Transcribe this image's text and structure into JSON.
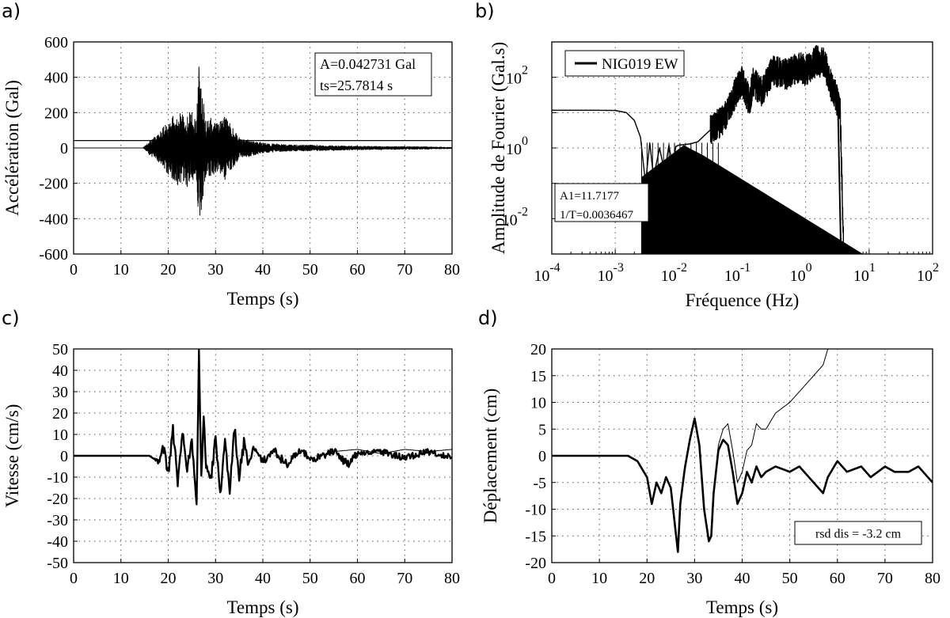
{
  "chart_data": [
    {
      "panel_label": "a)",
      "type": "line",
      "xlabel": "Temps (s)",
      "ylabel": "Accélération (Gal)",
      "xlim": [
        0,
        80
      ],
      "ylim": [
        -600,
        600
      ],
      "xticks": [
        0,
        10,
        20,
        30,
        40,
        50,
        60,
        70,
        80
      ],
      "yticks": [
        -600,
        -400,
        -200,
        0,
        200,
        400,
        600
      ],
      "xtick_labels": [
        "0",
        "10",
        "20",
        "30",
        "40",
        "50",
        "60",
        "70",
        "80"
      ],
      "ytick_labels": [
        "-600",
        "-400",
        "-200",
        "0",
        "200",
        "400",
        "600"
      ],
      "grid": true,
      "annotation": [
        "A=0.042731 Gal",
        "ts=25.7814 s"
      ],
      "annotation_placement": "top-right",
      "series": [
        {
          "x": [
            0,
            14,
            15,
            16,
            17,
            18,
            19,
            20,
            21,
            22,
            23,
            24,
            25,
            26,
            26.5,
            27,
            27.5,
            28,
            29,
            30,
            31,
            32,
            33,
            34,
            35,
            37,
            40,
            45,
            50,
            55,
            60,
            65,
            70,
            75,
            80
          ],
          "y": [
            0,
            0,
            10,
            -40,
            60,
            -80,
            120,
            -150,
            180,
            -210,
            190,
            -220,
            200,
            -180,
            460,
            -350,
            250,
            -150,
            170,
            -140,
            150,
            -180,
            140,
            -100,
            60,
            -50,
            30,
            -20,
            18,
            -15,
            12,
            -10,
            10,
            -8,
            5
          ]
        },
        {
          "x": [
            0,
            80
          ],
          "y": [
            42,
            42
          ]
        }
      ]
    },
    {
      "panel_label": "b)",
      "type": "line",
      "xlabel": "Fréquence (Hz)",
      "ylabel": "Amplitude de Fourier (Gal.s)",
      "xscale": "log",
      "yscale": "log",
      "xlim": [
        0.0001,
        100
      ],
      "ylim": [
        0.001,
        1000
      ],
      "xtick_labels": [
        {
          "base": "10",
          "exp": "-4"
        },
        {
          "base": "10",
          "exp": "-3"
        },
        {
          "base": "10",
          "exp": "-2"
        },
        {
          "base": "10",
          "exp": "-1"
        },
        {
          "base": "10",
          "exp": "0"
        },
        {
          "base": "10",
          "exp": "1"
        },
        {
          "base": "10",
          "exp": "2"
        }
      ],
      "ytick_labels": [
        {
          "base": "10",
          "exp": "-2"
        },
        {
          "base": "10",
          "exp": "0"
        },
        {
          "base": "10",
          "exp": "2"
        }
      ],
      "grid": true,
      "legend": [
        "NIG019 EW"
      ],
      "legend_placement": "top-left",
      "annotation": [
        "A1=11.7177",
        "1/T=0.0036467"
      ],
      "annotation_placement": "bottom-left",
      "series": [
        {
          "name": "NIG019 EW",
          "x": [
            0.0001,
            0.0005,
            0.001,
            0.0015,
            0.002,
            0.0025,
            0.003,
            0.0035,
            0.004,
            0.005,
            0.006,
            0.007,
            0.008,
            0.009,
            0.01,
            0.015,
            0.02,
            0.03,
            0.05,
            0.08,
            0.1,
            0.13,
            0.15,
            0.2,
            0.3,
            0.5,
            0.8,
            1,
            1.5,
            2,
            2.5,
            3,
            3.5,
            4,
            4.5
          ],
          "y": [
            11.7,
            11.7,
            11.5,
            10,
            6,
            2,
            0.1,
            1.4,
            0.15,
            1,
            0.2,
            1.2,
            0.3,
            1.1,
            1.2,
            1.3,
            1.5,
            3,
            6,
            40,
            80,
            20,
            70,
            40,
            150,
            120,
            200,
            150,
            300,
            250,
            60,
            30,
            10,
            0.001,
            0.001
          ]
        }
      ]
    },
    {
      "panel_label": "c)",
      "type": "line",
      "xlabel": "Temps (s)",
      "ylabel": "Vitesse (cm/s)",
      "xlim": [
        0,
        80
      ],
      "ylim": [
        -50,
        50
      ],
      "xticks": [
        0,
        10,
        20,
        30,
        40,
        50,
        60,
        70,
        80
      ],
      "yticks": [
        -50,
        -40,
        -30,
        -20,
        -10,
        0,
        10,
        20,
        30,
        40,
        50
      ],
      "xtick_labels": [
        "0",
        "10",
        "20",
        "30",
        "40",
        "50",
        "60",
        "70",
        "80"
      ],
      "ytick_labels": [
        "-50",
        "-40",
        "-30",
        "-20",
        "-10",
        "0",
        "10",
        "20",
        "30",
        "40",
        "50"
      ],
      "grid": true,
      "series": [
        {
          "x": [
            0,
            15,
            16,
            18,
            19,
            20,
            21,
            22,
            23,
            24,
            25,
            26,
            26.5,
            27,
            27.5,
            28,
            29,
            30,
            31,
            32,
            33,
            34,
            35,
            36,
            37,
            38,
            40,
            42,
            45,
            48,
            50,
            55,
            58,
            60,
            65,
            70,
            75,
            80
          ],
          "y": [
            0,
            0,
            0,
            -3,
            4,
            -8,
            12,
            -12,
            10,
            -6,
            8,
            -24,
            47,
            -10,
            17,
            -5,
            -12,
            8,
            -18,
            5,
            -15,
            14,
            -10,
            6,
            -5,
            4,
            -3,
            3,
            -4,
            3,
            -2,
            2,
            -4,
            1,
            2,
            -1,
            2,
            -1
          ]
        },
        {
          "x": [
            55,
            60,
            65,
            70,
            75,
            80
          ],
          "y": [
            2,
            3,
            1,
            3,
            2,
            3
          ]
        }
      ]
    },
    {
      "panel_label": "d)",
      "type": "line",
      "xlabel": "Temps (s)",
      "ylabel": "Déplacement (cm)",
      "xlim": [
        0,
        80
      ],
      "ylim": [
        -20,
        20
      ],
      "xticks": [
        0,
        10,
        20,
        30,
        40,
        50,
        60,
        70,
        80
      ],
      "yticks": [
        -20,
        -15,
        -10,
        -5,
        0,
        5,
        10,
        15,
        20
      ],
      "xtick_labels": [
        "0",
        "10",
        "20",
        "30",
        "40",
        "50",
        "60",
        "70",
        "80"
      ],
      "ytick_labels": [
        "-20",
        "-15",
        "-10",
        "-5",
        "0",
        "5",
        "10",
        "15",
        "20"
      ],
      "grid": true,
      "annotation": [
        "rsd dis = -3.2 cm"
      ],
      "annotation_placement": "bottom-right",
      "series": [
        {
          "x": [
            0,
            16,
            18,
            20,
            21,
            22,
            23,
            24,
            25,
            26,
            26.5,
            27,
            28,
            29,
            30,
            31,
            32,
            33,
            33.5,
            34,
            35,
            36,
            37,
            38,
            39,
            40,
            41,
            42,
            43,
            44,
            45,
            47,
            50,
            52,
            55,
            57,
            58,
            60,
            62,
            65,
            67,
            70,
            72,
            75,
            77,
            80
          ],
          "y": [
            0,
            0,
            -1,
            -4,
            -9,
            -5,
            -7,
            -4,
            -6,
            -14,
            -18,
            -9,
            -2,
            3,
            7,
            2,
            -10,
            -16,
            -15,
            -7,
            1,
            3,
            2,
            -3,
            -9,
            -7,
            -3,
            -5,
            -2,
            -4,
            -3,
            -2,
            -3,
            -2,
            -5,
            -7,
            -4,
            -1,
            -3,
            -2,
            -4,
            -2,
            -3,
            -3,
            -2,
            -5
          ]
        },
        {
          "x": [
            0,
            16,
            18,
            20,
            21,
            22,
            23,
            24,
            25,
            26,
            26.5,
            27,
            28,
            29,
            30,
            31,
            32,
            33,
            33.5,
            34,
            35,
            36,
            37,
            38,
            39,
            40,
            41,
            42,
            43,
            44,
            45,
            47,
            50,
            52,
            55,
            57,
            58
          ],
          "y": [
            0,
            0,
            -1,
            -4,
            -9,
            -5,
            -7,
            -4,
            -6,
            -14,
            -18,
            -9,
            -2,
            3,
            7,
            2,
            -10,
            -16,
            -15,
            -7,
            2,
            5,
            6,
            1,
            -5,
            -3,
            1,
            2,
            6,
            5,
            5,
            8,
            10,
            12,
            15,
            17,
            20
          ]
        }
      ]
    }
  ]
}
